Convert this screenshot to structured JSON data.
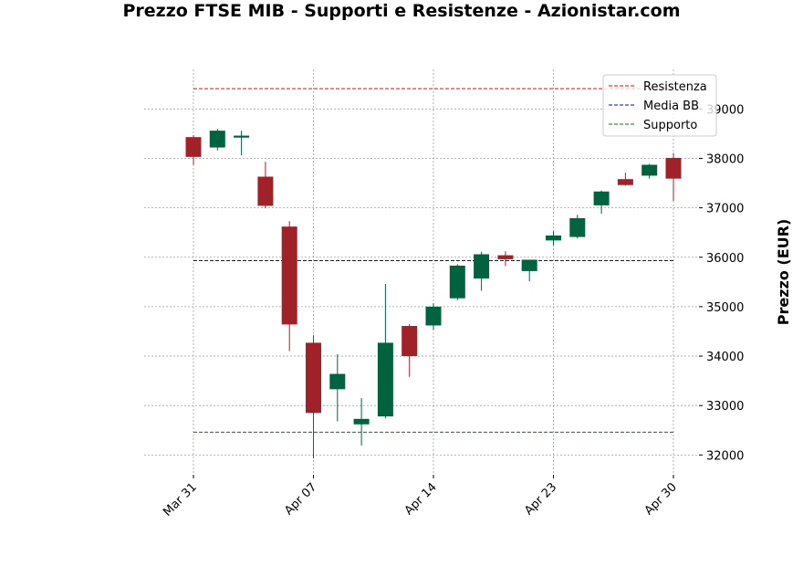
{
  "chart_data": {
    "type": "candlestick",
    "title": "Prezzo FTSE MIB - Supporti e Resistenze - Azionistar.com",
    "ylabel": "Prezzo (EUR)",
    "xlabel": "",
    "ylim": [
      31600,
      39800
    ],
    "yticks": [
      32000,
      33000,
      34000,
      35000,
      36000,
      37000,
      38000,
      39000
    ],
    "grid": true,
    "legend_position": "top-right",
    "xticks": [
      {
        "index": 0,
        "label": "Mar 31"
      },
      {
        "index": 5,
        "label": "Apr 07"
      },
      {
        "index": 10,
        "label": "Apr 14"
      },
      {
        "index": 15,
        "label": "Apr 23"
      },
      {
        "index": 20,
        "label": "Apr 30"
      }
    ],
    "candles": [
      {
        "o": 38430,
        "h": 38470,
        "l": 37870,
        "c": 38030
      },
      {
        "o": 38220,
        "h": 38600,
        "l": 38160,
        "c": 38560
      },
      {
        "o": 38420,
        "h": 38560,
        "l": 38060,
        "c": 38460
      },
      {
        "o": 37630,
        "h": 37930,
        "l": 36990,
        "c": 37040
      },
      {
        "o": 36620,
        "h": 36730,
        "l": 34100,
        "c": 34640
      },
      {
        "o": 34270,
        "h": 34420,
        "l": 31930,
        "c": 32850
      },
      {
        "o": 33330,
        "h": 34040,
        "l": 32680,
        "c": 33640
      },
      {
        "o": 32620,
        "h": 33150,
        "l": 32190,
        "c": 32730
      },
      {
        "o": 32780,
        "h": 35460,
        "l": 32740,
        "c": 34270
      },
      {
        "o": 34610,
        "h": 34650,
        "l": 33580,
        "c": 34000
      },
      {
        "o": 34620,
        "h": 35070,
        "l": 34530,
        "c": 35000
      },
      {
        "o": 35170,
        "h": 35860,
        "l": 35130,
        "c": 35830
      },
      {
        "o": 35570,
        "h": 36110,
        "l": 35320,
        "c": 36060
      },
      {
        "o": 36040,
        "h": 36120,
        "l": 35820,
        "c": 35960
      },
      {
        "o": 35720,
        "h": 35950,
        "l": 35510,
        "c": 35950
      },
      {
        "o": 36340,
        "h": 36520,
        "l": 36240,
        "c": 36440
      },
      {
        "o": 36410,
        "h": 36860,
        "l": 36380,
        "c": 36790
      },
      {
        "o": 37050,
        "h": 37350,
        "l": 36880,
        "c": 37330
      },
      {
        "o": 37580,
        "h": 37710,
        "l": 37450,
        "c": 37460
      },
      {
        "o": 37650,
        "h": 37890,
        "l": 37590,
        "c": 37870
      },
      {
        "o": 38010,
        "h": 38110,
        "l": 37140,
        "c": 37590
      }
    ],
    "up_color": "#006340",
    "down_color": "#a02128",
    "levels": [
      {
        "name": "Resistenza",
        "value": 39410,
        "color": "#ff0000"
      },
      {
        "name": "Media BB",
        "value": 35930,
        "color": "#0000ff"
      },
      {
        "name": "Supporto",
        "value": 32460,
        "color": "#008000"
      }
    ]
  }
}
